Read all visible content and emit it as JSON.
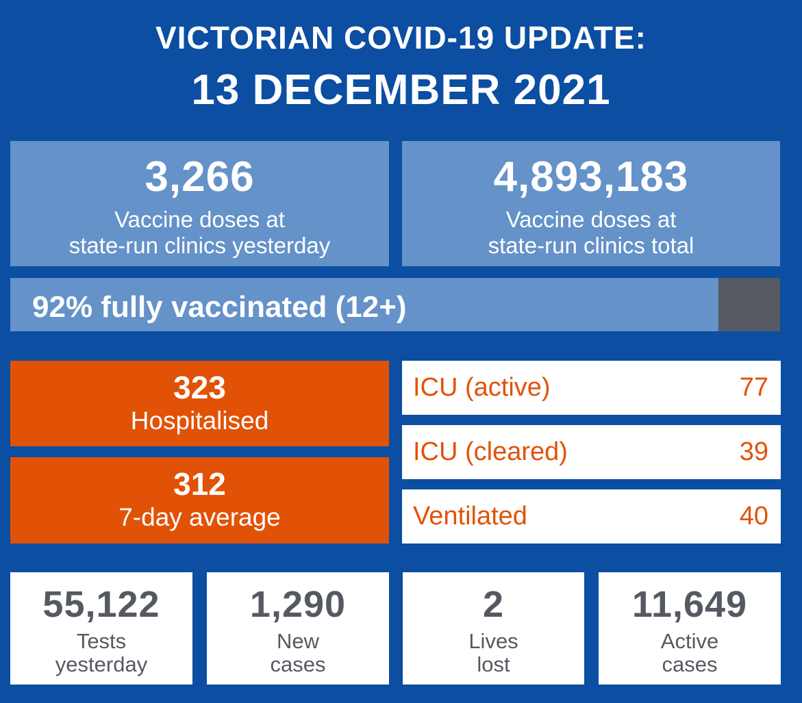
{
  "header": {
    "line1": "VICTORIAN COVID-19 UPDATE:",
    "line2": "13 DECEMBER 2021"
  },
  "vaccine": {
    "yesterday": {
      "value": "3,266",
      "label_line1": "Vaccine doses at",
      "label_line2": "state-run clinics yesterday"
    },
    "total": {
      "value": "4,893,183",
      "label_line1": "Vaccine doses at",
      "label_line2": "state-run clinics total"
    }
  },
  "fully_vaccinated": {
    "text": "92% fully vaccinated (12+)",
    "percent": 92
  },
  "hospital": {
    "hospitalised": {
      "value": "323",
      "label": "Hospitalised"
    },
    "average": {
      "value": "312",
      "label": "7-day average"
    }
  },
  "icu": [
    {
      "label": "ICU (active)",
      "value": "77"
    },
    {
      "label": "ICU (cleared)",
      "value": "39"
    },
    {
      "label": "Ventilated",
      "value": "40"
    }
  ],
  "stats": [
    {
      "value": "55,122",
      "label_line1": "Tests",
      "label_line2": "yesterday"
    },
    {
      "value": "1,290",
      "label_line1": "New",
      "label_line2": "cases"
    },
    {
      "value": "2",
      "label_line1": "Lives",
      "label_line2": "lost"
    },
    {
      "value": "11,649",
      "label_line1": "Active",
      "label_line2": "cases"
    }
  ],
  "colors": {
    "background": "#0b4ea2",
    "light_blue": "#6492c9",
    "orange": "#e15207",
    "grey": "#555961",
    "white": "#ffffff"
  }
}
